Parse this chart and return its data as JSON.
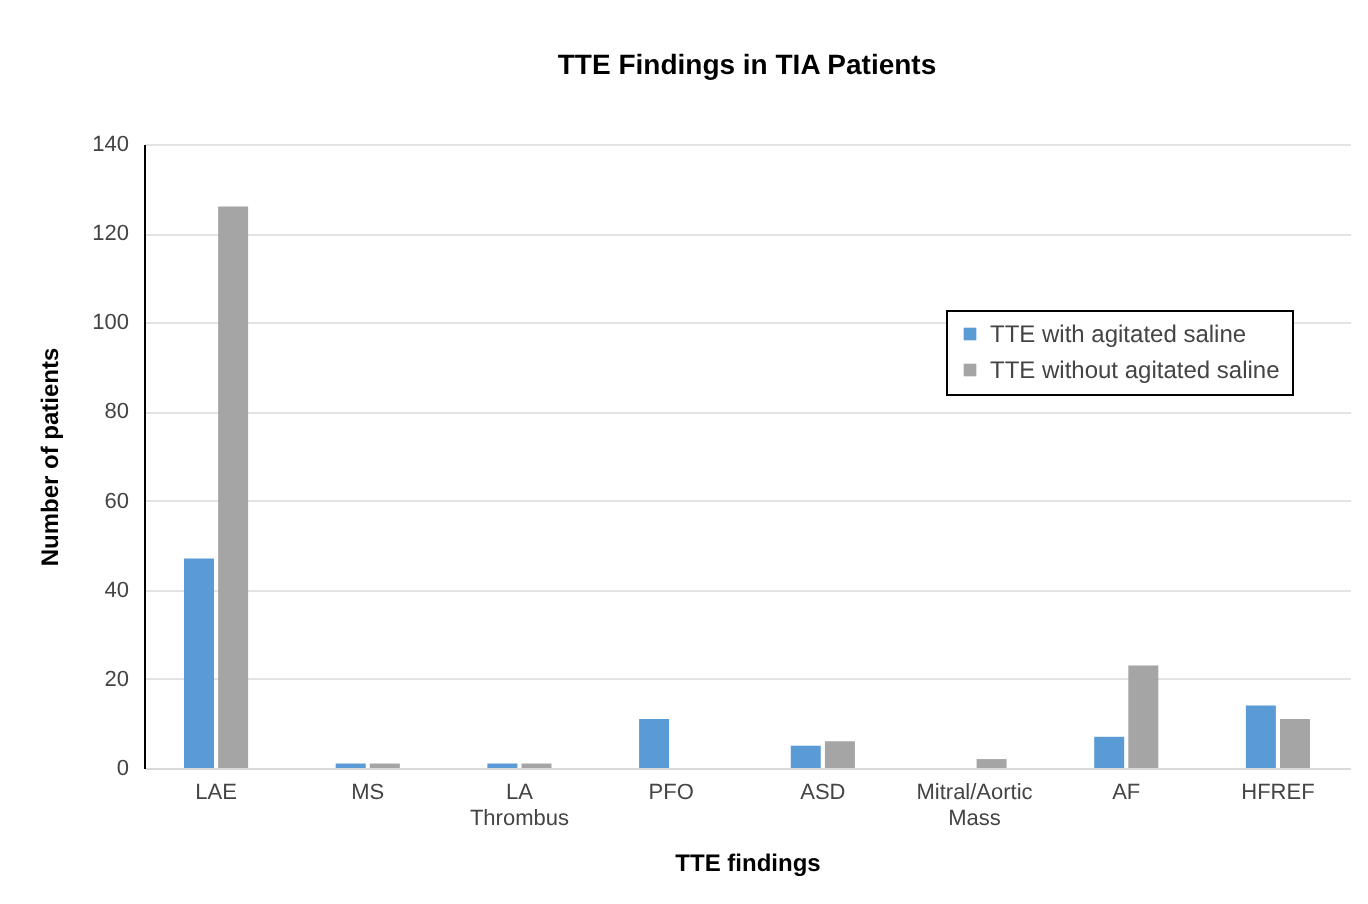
{
  "chart_data": {
    "type": "bar",
    "title": "TTE Findings in TIA Patients",
    "xlabel": "TTE findings",
    "ylabel": "Number of patients",
    "categories": [
      "LAE",
      "MS",
      "LA Thrombus",
      "PFO",
      "ASD",
      "Mitral/Aortic Mass",
      "AF",
      "HFREF"
    ],
    "series": [
      {
        "name": "TTE with agitated saline",
        "color": "#5b9bd5",
        "values": [
          47,
          1,
          1,
          11,
          5,
          0,
          7,
          14
        ]
      },
      {
        "name": "TTE without agitated saline",
        "color": "#a5a5a5",
        "values": [
          126,
          1,
          1,
          0,
          6,
          2,
          23,
          11
        ]
      }
    ],
    "ylim": [
      0,
      140
    ],
    "yticks": [
      0,
      20,
      40,
      60,
      80,
      100,
      120,
      140
    ],
    "grid": "y",
    "legend": "right"
  }
}
